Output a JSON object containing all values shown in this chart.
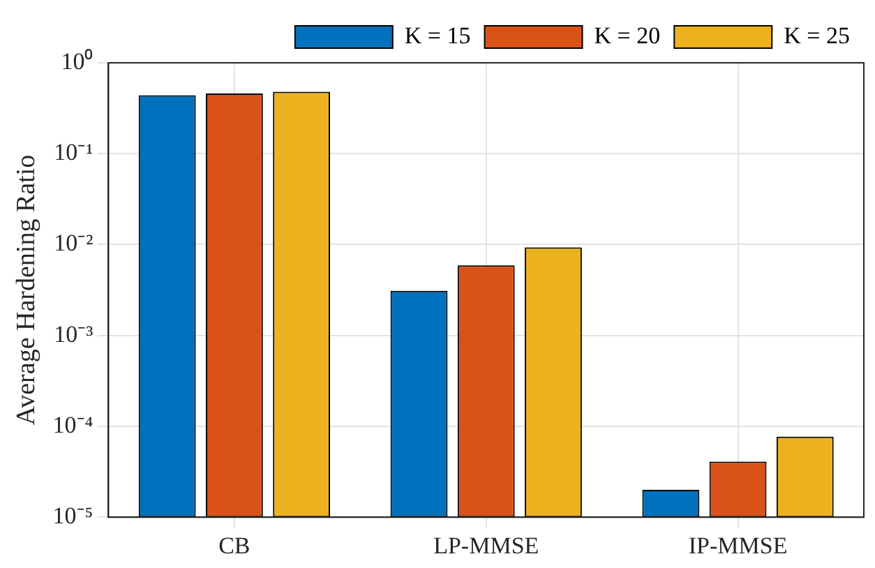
{
  "chart_data": {
    "type": "bar",
    "ylabel": "Average Hardening Ratio",
    "categories": [
      "CB",
      "LP-MMSE",
      "IP-MMSE"
    ],
    "series": [
      {
        "name": "K = 15",
        "color": "#0072bd",
        "values": [
          0.44,
          0.0031,
          2e-05
        ]
      },
      {
        "name": "K = 20",
        "color": "#d95319",
        "values": [
          0.46,
          0.0059,
          4.1e-05
        ]
      },
      {
        "name": "K = 25",
        "color": "#edb120",
        "values": [
          0.48,
          0.0093,
          7.7e-05
        ]
      }
    ],
    "log": true,
    "ylim": [
      1e-05,
      1
    ],
    "yticks": [
      {
        "value": 1e-05,
        "label": "10⁻⁵"
      },
      {
        "value": 0.0001,
        "label": "10⁻⁴"
      },
      {
        "value": 0.001,
        "label": "10⁻³"
      },
      {
        "value": 0.01,
        "label": "10⁻²"
      },
      {
        "value": 0.1,
        "label": "10⁻¹"
      },
      {
        "value": 1,
        "label": "10⁰"
      }
    ],
    "grid": true,
    "legend": "top right"
  }
}
